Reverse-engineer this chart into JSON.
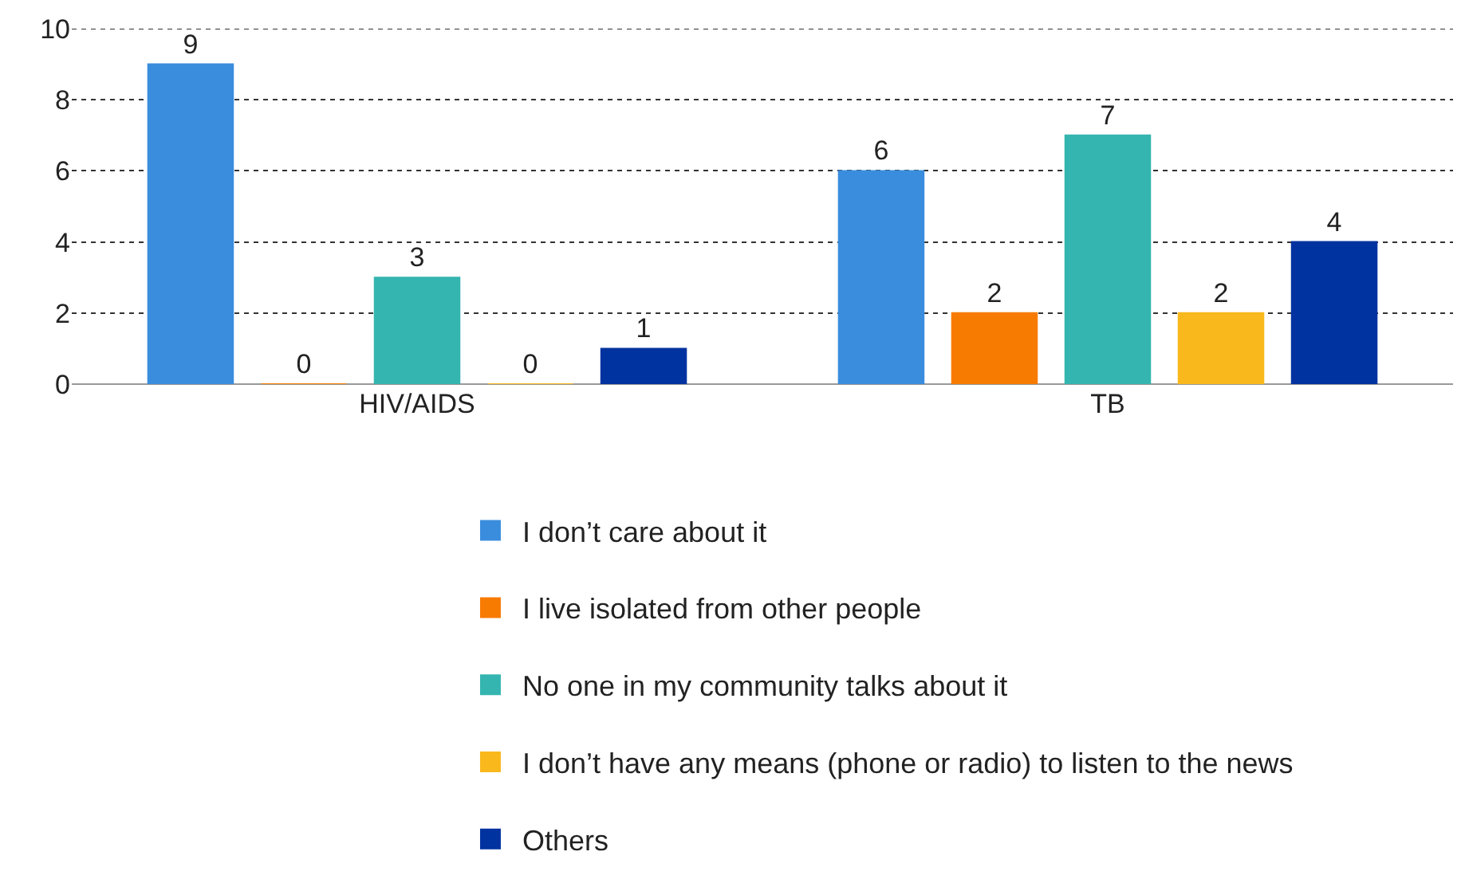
{
  "chart_data": {
    "type": "bar",
    "categories": [
      "HIV/AIDS",
      "TB"
    ],
    "series": [
      {
        "name": "I don’t care about it",
        "color": "#3a8ddd",
        "values": [
          9,
          6
        ]
      },
      {
        "name": "I live isolated from other people",
        "color": "#f77b00",
        "values": [
          0,
          2
        ]
      },
      {
        "name": "No one in my community talks about it",
        "color": "#35b5b0",
        "values": [
          3,
          7
        ]
      },
      {
        "name": "I don’t have any means (phone or radio) to listen to the news",
        "color": "#f9b81c",
        "values": [
          0,
          2
        ]
      },
      {
        "name": "Others",
        "color": "#0033a0",
        "values": [
          1,
          4
        ]
      }
    ],
    "ylim": [
      0,
      10
    ],
    "yticks": [
      0,
      2,
      4,
      6,
      8,
      10
    ],
    "grid": "y",
    "legend": "bottom",
    "data_labels": true
  }
}
